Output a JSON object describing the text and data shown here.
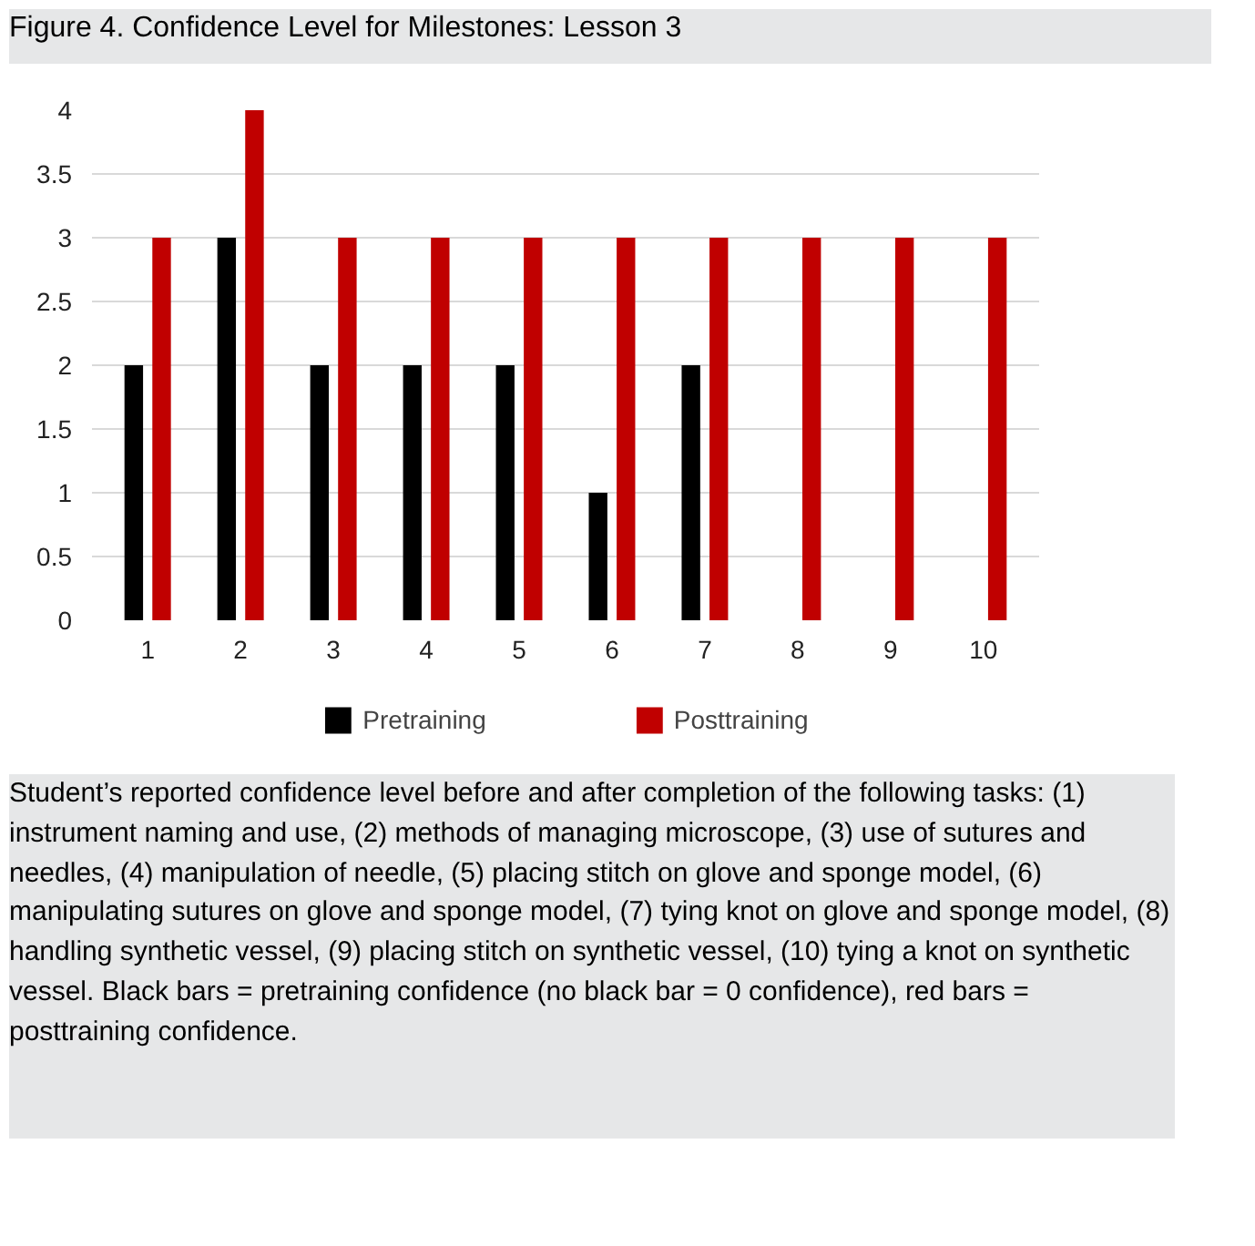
{
  "chart_data": {
    "type": "bar",
    "title": "Figure 4. Confidence Level for Milestones: Lesson 3",
    "categories": [
      "1",
      "2",
      "3",
      "4",
      "5",
      "6",
      "7",
      "8",
      "9",
      "10"
    ],
    "series": [
      {
        "name": "Pretraining",
        "color": "#000000",
        "values": [
          2,
          3,
          2,
          2,
          2,
          1,
          2,
          0,
          0,
          0
        ]
      },
      {
        "name": "Posttraining",
        "color": "#c00000",
        "values": [
          3,
          4,
          3,
          3,
          3,
          3,
          3,
          3,
          3,
          3
        ]
      }
    ],
    "ylim": [
      0,
      4
    ],
    "yticks": [
      0,
      0.5,
      1,
      1.5,
      2,
      2.5,
      3,
      3.5,
      4
    ],
    "grid": "y",
    "legend": "bottom",
    "annotations": [
      "Student’s reported confidence level before and after completion of the following tasks: (1) instrument naming and use, (2) methods of managing microscope, (3) use of sutures and needles, (4) manipulation of needle, (5) placing stitch on glove and sponge model, (6) manipulating sutures on glove and sponge model, (7) tying knot on glove and sponge model, (8) handling synthetic vessel, (9) placing stitch on synthetic vessel, (10) tying a knot on synthetic vessel. Black bars = pretraining confidence (no black bar = 0 confidence), red bars = posttraining confidence."
    ]
  }
}
